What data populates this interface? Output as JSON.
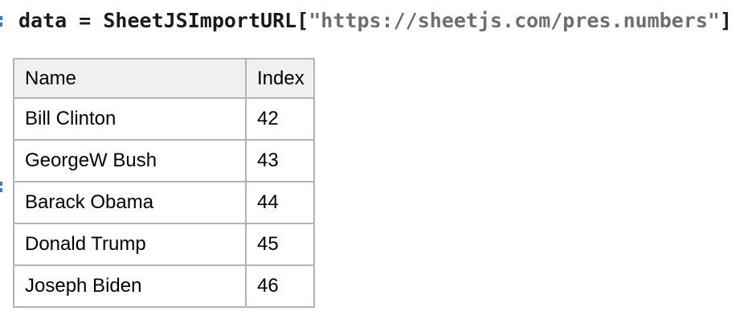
{
  "code_cell": {
    "code_prefix": "data = SheetJSImportURL[",
    "code_string": "\"https://sheetjs.com/pres.numbers\"",
    "code_suffix": "]"
  },
  "output_table": {
    "headers": [
      "Name",
      "Index"
    ],
    "rows": [
      {
        "name": "Bill Clinton",
        "index": "42"
      },
      {
        "name": "GeorgeW Bush",
        "index": "43"
      },
      {
        "name": "Barack Obama",
        "index": "44"
      },
      {
        "name": "Donald Trump",
        "index": "45"
      },
      {
        "name": "Joseph Biden",
        "index": "46"
      }
    ]
  },
  "icons": {
    "gutter_icon": "cell-handle-icon"
  },
  "colors": {
    "code_text": "#1a1a1a",
    "code_string_text": "#6e6e6e",
    "table_border": "#b3b3b3",
    "table_header_bg": "#f0f0f0",
    "gutter_mark_blue": "#4579a9",
    "background": "#ffffff"
  }
}
